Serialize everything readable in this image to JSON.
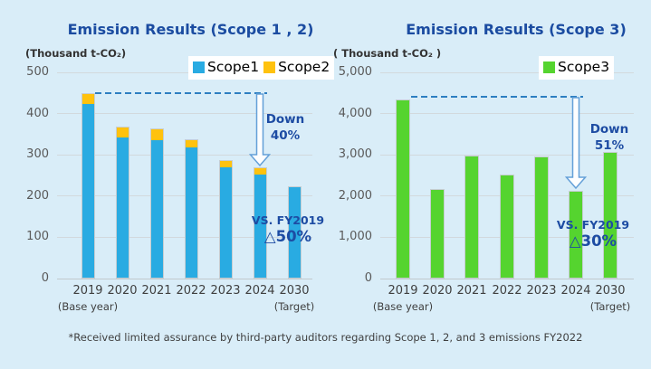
{
  "page": {
    "background": "#D9EDF8",
    "footnote": "*Received limited assurance by third-party auditors regarding Scope 1, 2, and 3 emissions FY2022"
  },
  "colors": {
    "title_blue": "#1B4CA1",
    "annotation_blue": "#1D4CA3",
    "scope1_blue": "#29ABE2",
    "scope2_yellow": "#FFC20E",
    "scope3_green": "#55D42F",
    "dashed_line": "#2E7FC1",
    "arrow_stroke": "#64A0D8",
    "gridline": "#D2D9DD",
    "tick_text": "#595959",
    "axis_text": "#3F3F3F"
  },
  "chart_data": [
    {
      "type": "bar",
      "stacked": true,
      "title": "Emission Results (Scope 1 , 2)",
      "unit_label": "(Thousand t-CO₂)",
      "categories": [
        "2019",
        "2020",
        "2021",
        "2022",
        "2023",
        "2024",
        "2030"
      ],
      "axis_notes": [
        {
          "category": "2019",
          "text": "(Base year)"
        },
        {
          "category": "2030",
          "text": "(Target)"
        }
      ],
      "series": [
        {
          "name": "Scope1",
          "color": "#29ABE2",
          "values": [
            425,
            343,
            338,
            319,
            272,
            253,
            224
          ]
        },
        {
          "name": "Scope2",
          "color": "#FFC20E",
          "values": [
            25,
            26,
            27,
            19,
            15,
            16,
            0
          ]
        }
      ],
      "ylim": [
        0,
        500
      ],
      "ytick_step": 100,
      "yticks": [
        "0",
        "100",
        "200",
        "300",
        "400",
        "500"
      ],
      "grid": true,
      "legend_position": "top-right",
      "annotations": {
        "down_lines": [
          "Down",
          "40%"
        ],
        "vs_line1": "VS. FY2019",
        "vs_line2": "△50%",
        "baseline_value": 450,
        "arrow_category": "2024"
      }
    },
    {
      "type": "bar",
      "stacked": false,
      "title": "Emission Results (Scope 3)",
      "unit_label": "( Thousand t-CO₂ )",
      "categories": [
        "2019",
        "2020",
        "2021",
        "2022",
        "2023",
        "2024",
        "2030"
      ],
      "axis_notes": [
        {
          "category": "2019",
          "text": "(Base year)"
        },
        {
          "category": "2030",
          "text": "(Target)"
        }
      ],
      "series": [
        {
          "name": "Scope3",
          "color": "#55D42F",
          "values": [
            4350,
            2170,
            2980,
            2520,
            2950,
            2130,
            3060
          ]
        }
      ],
      "ylim": [
        0,
        5000
      ],
      "ytick_step": 1000,
      "yticks": [
        "0",
        "1,000",
        "2,000",
        "3,000",
        "4,000",
        "5,000"
      ],
      "grid": true,
      "legend_position": "top-right",
      "annotations": {
        "down_lines": [
          "Down",
          "51%"
        ],
        "vs_line1": "VS. FY2019",
        "vs_line2": "△30%",
        "baseline_value": 4400,
        "arrow_category": "2024"
      }
    }
  ]
}
